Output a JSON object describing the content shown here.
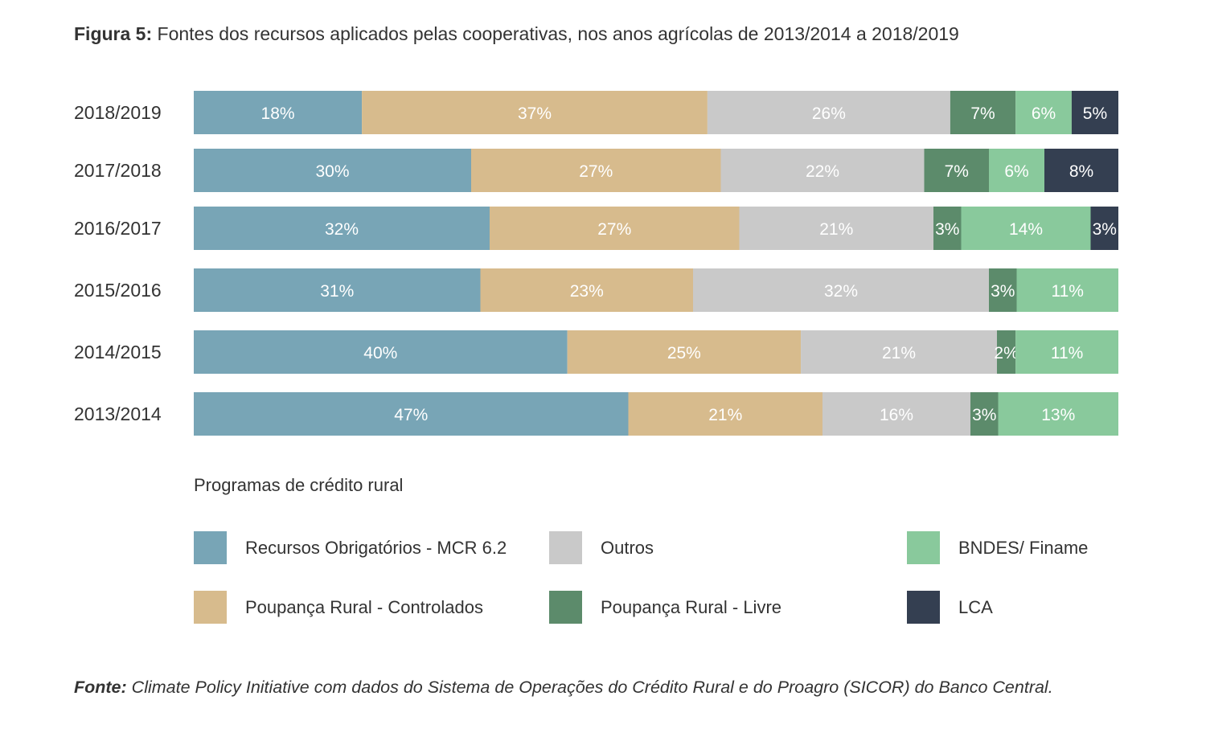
{
  "title": {
    "label": "Figura 5:",
    "text": "Fontes dos recursos aplicados pelas cooperativas, nos anos agrícolas de 2013/2014 a 2018/2019"
  },
  "legend": {
    "title": "Programas de crédito rural",
    "items": [
      {
        "label": "Recursos Obrigatórios - MCR 6.2",
        "color": "#78a5b6"
      },
      {
        "label": "Poupança Rural - Controlados",
        "color": "#d7bb8d"
      },
      {
        "label": "Outros",
        "color": "#c9c9c9"
      },
      {
        "label": "Poupança Rural - Livre",
        "color": "#5c8b6b"
      },
      {
        "label": "BNDES/ Finame",
        "color": "#89c99c"
      },
      {
        "label": "LCA",
        "color": "#343f51"
      }
    ]
  },
  "source": {
    "label": "Fonte:",
    "text": "Climate Policy Initiative com dados do Sistema de Operações do Crédito Rural e do Proagro (SICOR) do Banco Central."
  },
  "chart_data": {
    "type": "bar",
    "orientation": "horizontal",
    "stacked": true,
    "normalized_percent": true,
    "categories": [
      "2018/2019",
      "2017/2018",
      "2016/2017",
      "2015/2016",
      "2014/2015",
      "2013/2014"
    ],
    "series": [
      {
        "name": "Recursos Obrigatórios - MCR 6.2",
        "color": "#78a5b6",
        "values": [
          18,
          30,
          32,
          31,
          40,
          47
        ]
      },
      {
        "name": "Poupança Rural - Controlados",
        "color": "#d7bb8d",
        "values": [
          37,
          27,
          27,
          23,
          25,
          21
        ]
      },
      {
        "name": "Outros",
        "color": "#c9c9c9",
        "values": [
          26,
          22,
          21,
          32,
          21,
          16
        ]
      },
      {
        "name": "Poupança Rural - Livre",
        "color": "#5c8b6b",
        "values": [
          7,
          7,
          3,
          3,
          2,
          3
        ]
      },
      {
        "name": "BNDES/ Finame",
        "color": "#89c99c",
        "values": [
          6,
          6,
          14,
          11,
          11,
          13
        ]
      },
      {
        "name": "LCA",
        "color": "#343f51",
        "values": [
          5,
          8,
          3,
          0,
          0,
          0
        ]
      }
    ],
    "value_suffix": "%",
    "label_color": "#ffffff",
    "grid": false
  }
}
